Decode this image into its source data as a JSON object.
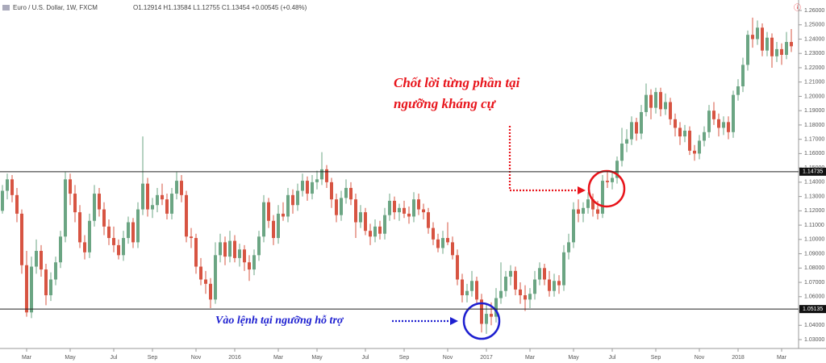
{
  "chart_data": {
    "type": "candlestick",
    "symbol": "Euro / U.S. Dollar, 1W, FXCM",
    "ohlc_legend": "O1.12914 H1.13584 L1.12755 C1.13454 +0.00545 (+0.48%)",
    "up_color": "#6ba583",
    "down_color": "#d75442",
    "ylim": [
      1.025,
      1.265
    ],
    "yticks": [
      {
        "value": 1.26,
        "label": "1.26000"
      },
      {
        "value": 1.25,
        "label": "1.25000"
      },
      {
        "value": 1.24,
        "label": "1.24000"
      },
      {
        "value": 1.23,
        "label": "1.23000"
      },
      {
        "value": 1.22,
        "label": "1.22000"
      },
      {
        "value": 1.21,
        "label": "1.21000"
      },
      {
        "value": 1.2,
        "label": "1.20000"
      },
      {
        "value": 1.19,
        "label": "1.19000"
      },
      {
        "value": 1.18,
        "label": "1.18000"
      },
      {
        "value": 1.17,
        "label": "1.17000"
      },
      {
        "value": 1.16,
        "label": "1.16000"
      },
      {
        "value": 1.15,
        "label": "1.15000"
      },
      {
        "value": 1.14,
        "label": "1.14000"
      },
      {
        "value": 1.13,
        "label": "1.13000"
      },
      {
        "value": 1.12,
        "label": "1.12000"
      },
      {
        "value": 1.11,
        "label": "1.11000"
      },
      {
        "value": 1.1,
        "label": "1.10000"
      },
      {
        "value": 1.09,
        "label": "1.09000"
      },
      {
        "value": 1.08,
        "label": "1.08000"
      },
      {
        "value": 1.07,
        "label": "1.07000"
      },
      {
        "value": 1.06,
        "label": "1.06000"
      },
      {
        "value": 1.05,
        "label": "1.05000"
      },
      {
        "value": 1.04,
        "label": "1.04000"
      },
      {
        "value": 1.03,
        "label": "1.03000"
      }
    ],
    "xticks": [
      {
        "value": 5,
        "label": "Mar"
      },
      {
        "value": 14,
        "label": "May"
      },
      {
        "value": 23,
        "label": "Jul"
      },
      {
        "value": 31,
        "label": "Sep"
      },
      {
        "value": 40,
        "label": "Nov"
      },
      {
        "value": 48,
        "label": "2016"
      },
      {
        "value": 57,
        "label": "Mar"
      },
      {
        "value": 65,
        "label": "May"
      },
      {
        "value": 75,
        "label": "Jul"
      },
      {
        "value": 83,
        "label": "Sep"
      },
      {
        "value": 92,
        "label": "Nov"
      },
      {
        "value": 100,
        "label": "2017"
      },
      {
        "value": 109,
        "label": "Mar"
      },
      {
        "value": 118,
        "label": "May"
      },
      {
        "value": 126,
        "label": "Jul"
      },
      {
        "value": 135,
        "label": "Sep"
      },
      {
        "value": 144,
        "label": "Nov"
      },
      {
        "value": 152,
        "label": "2018"
      },
      {
        "value": 161,
        "label": "Mar"
      }
    ],
    "levels": [
      1.14735,
      1.05135
    ],
    "annotations": {
      "resistance": [
        "Chốt lời từng phần tại",
        "ngưỡng kháng cự"
      ],
      "support": "Vào lệnh tại ngưỡng hỗ trợ"
    },
    "candles": [
      [
        1.12,
        1.138,
        1.118,
        1.134
      ],
      [
        1.134,
        1.146,
        1.128,
        1.142
      ],
      [
        1.142,
        1.145,
        1.126,
        1.131
      ],
      [
        1.131,
        1.136,
        1.112,
        1.118
      ],
      [
        1.118,
        1.121,
        1.076,
        1.082
      ],
      [
        1.082,
        1.092,
        1.046,
        1.049
      ],
      [
        1.049,
        1.088,
        1.045,
        1.081
      ],
      [
        1.081,
        1.1,
        1.076,
        1.092
      ],
      [
        1.092,
        1.096,
        1.074,
        1.079
      ],
      [
        1.079,
        1.083,
        1.054,
        1.061
      ],
      [
        1.061,
        1.077,
        1.057,
        1.072
      ],
      [
        1.072,
        1.088,
        1.068,
        1.084
      ],
      [
        1.084,
        1.106,
        1.08,
        1.102
      ],
      [
        1.102,
        1.147,
        1.098,
        1.142
      ],
      [
        1.142,
        1.146,
        1.124,
        1.132
      ],
      [
        1.132,
        1.138,
        1.112,
        1.119
      ],
      [
        1.119,
        1.124,
        1.094,
        1.098
      ],
      [
        1.098,
        1.103,
        1.086,
        1.091
      ],
      [
        1.091,
        1.118,
        1.087,
        1.113
      ],
      [
        1.113,
        1.138,
        1.109,
        1.132
      ],
      [
        1.132,
        1.136,
        1.116,
        1.121
      ],
      [
        1.121,
        1.126,
        1.103,
        1.109
      ],
      [
        1.109,
        1.114,
        1.096,
        1.101
      ],
      [
        1.101,
        1.109,
        1.091,
        1.096
      ],
      [
        1.096,
        1.1,
        1.086,
        1.089
      ],
      [
        1.089,
        1.106,
        1.085,
        1.101
      ],
      [
        1.101,
        1.116,
        1.097,
        1.112
      ],
      [
        1.112,
        1.115,
        1.094,
        1.098
      ],
      [
        1.098,
        1.126,
        1.094,
        1.121
      ],
      [
        1.121,
        1.172,
        1.117,
        1.139
      ],
      [
        1.139,
        1.143,
        1.116,
        1.121
      ],
      [
        1.121,
        1.129,
        1.115,
        1.124
      ],
      [
        1.124,
        1.136,
        1.119,
        1.131
      ],
      [
        1.131,
        1.139,
        1.124,
        1.128
      ],
      [
        1.128,
        1.132,
        1.114,
        1.118
      ],
      [
        1.118,
        1.136,
        1.114,
        1.132
      ],
      [
        1.132,
        1.147,
        1.128,
        1.141
      ],
      [
        1.141,
        1.145,
        1.126,
        1.131
      ],
      [
        1.131,
        1.134,
        1.098,
        1.102
      ],
      [
        1.102,
        1.108,
        1.094,
        1.101
      ],
      [
        1.101,
        1.104,
        1.076,
        1.081
      ],
      [
        1.081,
        1.087,
        1.068,
        1.072
      ],
      [
        1.072,
        1.078,
        1.062,
        1.069
      ],
      [
        1.069,
        1.073,
        1.052,
        1.058
      ],
      [
        1.058,
        1.098,
        1.055,
        1.089
      ],
      [
        1.089,
        1.104,
        1.084,
        1.098
      ],
      [
        1.098,
        1.102,
        1.082,
        1.088
      ],
      [
        1.088,
        1.106,
        1.084,
        1.099
      ],
      [
        1.099,
        1.103,
        1.084,
        1.087
      ],
      [
        1.087,
        1.097,
        1.081,
        1.093
      ],
      [
        1.093,
        1.096,
        1.078,
        1.084
      ],
      [
        1.084,
        1.089,
        1.071,
        1.079
      ],
      [
        1.079,
        1.093,
        1.075,
        1.089
      ],
      [
        1.089,
        1.106,
        1.085,
        1.102
      ],
      [
        1.102,
        1.131,
        1.098,
        1.126
      ],
      [
        1.126,
        1.129,
        1.108,
        1.113
      ],
      [
        1.113,
        1.117,
        1.096,
        1.101
      ],
      [
        1.101,
        1.124,
        1.097,
        1.118
      ],
      [
        1.118,
        1.126,
        1.113,
        1.116
      ],
      [
        1.116,
        1.136,
        1.112,
        1.131
      ],
      [
        1.131,
        1.135,
        1.118,
        1.124
      ],
      [
        1.124,
        1.139,
        1.12,
        1.134
      ],
      [
        1.134,
        1.146,
        1.13,
        1.141
      ],
      [
        1.141,
        1.144,
        1.127,
        1.132
      ],
      [
        1.132,
        1.145,
        1.128,
        1.14
      ],
      [
        1.14,
        1.148,
        1.135,
        1.142
      ],
      [
        1.142,
        1.161,
        1.138,
        1.149
      ],
      [
        1.149,
        1.152,
        1.136,
        1.14
      ],
      [
        1.14,
        1.143,
        1.122,
        1.128
      ],
      [
        1.128,
        1.132,
        1.112,
        1.117
      ],
      [
        1.117,
        1.134,
        1.113,
        1.129
      ],
      [
        1.129,
        1.142,
        1.125,
        1.136
      ],
      [
        1.136,
        1.14,
        1.124,
        1.128
      ],
      [
        1.128,
        1.132,
        1.101,
        1.112
      ],
      [
        1.112,
        1.124,
        1.108,
        1.119
      ],
      [
        1.119,
        1.122,
        1.103,
        1.106
      ],
      [
        1.106,
        1.111,
        1.096,
        1.102
      ],
      [
        1.102,
        1.114,
        1.098,
        1.109
      ],
      [
        1.109,
        1.113,
        1.1,
        1.104
      ],
      [
        1.104,
        1.122,
        1.1,
        1.117
      ],
      [
        1.117,
        1.132,
        1.113,
        1.127
      ],
      [
        1.127,
        1.13,
        1.114,
        1.119
      ],
      [
        1.119,
        1.125,
        1.113,
        1.122
      ],
      [
        1.122,
        1.127,
        1.115,
        1.118
      ],
      [
        1.118,
        1.123,
        1.111,
        1.116
      ],
      [
        1.116,
        1.133,
        1.112,
        1.128
      ],
      [
        1.128,
        1.132,
        1.117,
        1.121
      ],
      [
        1.121,
        1.125,
        1.114,
        1.119
      ],
      [
        1.119,
        1.122,
        1.104,
        1.108
      ],
      [
        1.108,
        1.112,
        1.096,
        1.1
      ],
      [
        1.1,
        1.104,
        1.091,
        1.094
      ],
      [
        1.094,
        1.106,
        1.09,
        1.101
      ],
      [
        1.101,
        1.112,
        1.096,
        1.098
      ],
      [
        1.098,
        1.102,
        1.086,
        1.089
      ],
      [
        1.089,
        1.093,
        1.068,
        1.072
      ],
      [
        1.072,
        1.076,
        1.056,
        1.061
      ],
      [
        1.061,
        1.069,
        1.056,
        1.064
      ],
      [
        1.064,
        1.078,
        1.06,
        1.071
      ],
      [
        1.071,
        1.074,
        1.055,
        1.058
      ],
      [
        1.058,
        1.062,
        1.035,
        1.041
      ],
      [
        1.041,
        1.055,
        1.034,
        1.048
      ],
      [
        1.048,
        1.056,
        1.04,
        1.046
      ],
      [
        1.046,
        1.066,
        1.042,
        1.059
      ],
      [
        1.059,
        1.084,
        1.055,
        1.064
      ],
      [
        1.064,
        1.078,
        1.06,
        1.074
      ],
      [
        1.074,
        1.082,
        1.068,
        1.078
      ],
      [
        1.078,
        1.081,
        1.061,
        1.065
      ],
      [
        1.065,
        1.07,
        1.055,
        1.061
      ],
      [
        1.061,
        1.068,
        1.05,
        1.058
      ],
      [
        1.058,
        1.066,
        1.052,
        1.062
      ],
      [
        1.062,
        1.078,
        1.058,
        1.072
      ],
      [
        1.072,
        1.084,
        1.068,
        1.08
      ],
      [
        1.08,
        1.083,
        1.068,
        1.072
      ],
      [
        1.072,
        1.078,
        1.06,
        1.064
      ],
      [
        1.064,
        1.076,
        1.06,
        1.071
      ],
      [
        1.071,
        1.075,
        1.062,
        1.068
      ],
      [
        1.068,
        1.096,
        1.064,
        1.091
      ],
      [
        1.091,
        1.104,
        1.086,
        1.098
      ],
      [
        1.098,
        1.126,
        1.094,
        1.121
      ],
      [
        1.121,
        1.128,
        1.112,
        1.118
      ],
      [
        1.118,
        1.126,
        1.112,
        1.122
      ],
      [
        1.122,
        1.133,
        1.118,
        1.128
      ],
      [
        1.128,
        1.132,
        1.116,
        1.121
      ],
      [
        1.121,
        1.127,
        1.114,
        1.118
      ],
      [
        1.118,
        1.145,
        1.115,
        1.141
      ],
      [
        1.141,
        1.148,
        1.136,
        1.14
      ],
      [
        1.14,
        1.147,
        1.135,
        1.143
      ],
      [
        1.143,
        1.158,
        1.139,
        1.155
      ],
      [
        1.155,
        1.178,
        1.151,
        1.167
      ],
      [
        1.167,
        1.177,
        1.161,
        1.17
      ],
      [
        1.17,
        1.186,
        1.166,
        1.182
      ],
      [
        1.182,
        1.185,
        1.169,
        1.174
      ],
      [
        1.174,
        1.194,
        1.17,
        1.189
      ],
      [
        1.189,
        1.209,
        1.186,
        1.201
      ],
      [
        1.201,
        1.205,
        1.184,
        1.192
      ],
      [
        1.192,
        1.206,
        1.188,
        1.203
      ],
      [
        1.203,
        1.206,
        1.186,
        1.191
      ],
      [
        1.191,
        1.202,
        1.187,
        1.196
      ],
      [
        1.196,
        1.199,
        1.18,
        1.184
      ],
      [
        1.184,
        1.188,
        1.172,
        1.178
      ],
      [
        1.178,
        1.182,
        1.166,
        1.172
      ],
      [
        1.172,
        1.18,
        1.168,
        1.176
      ],
      [
        1.176,
        1.179,
        1.159,
        1.162
      ],
      [
        1.162,
        1.166,
        1.155,
        1.16
      ],
      [
        1.16,
        1.173,
        1.156,
        1.169
      ],
      [
        1.169,
        1.179,
        1.165,
        1.175
      ],
      [
        1.175,
        1.194,
        1.171,
        1.19
      ],
      [
        1.19,
        1.196,
        1.18,
        1.184
      ],
      [
        1.184,
        1.188,
        1.172,
        1.178
      ],
      [
        1.178,
        1.186,
        1.173,
        1.182
      ],
      [
        1.182,
        1.186,
        1.17,
        1.175
      ],
      [
        1.175,
        1.204,
        1.171,
        1.201
      ],
      [
        1.201,
        1.212,
        1.197,
        1.207
      ],
      [
        1.207,
        1.227,
        1.203,
        1.222
      ],
      [
        1.222,
        1.246,
        1.218,
        1.243
      ],
      [
        1.243,
        1.255,
        1.234,
        1.24
      ],
      [
        1.24,
        1.253,
        1.236,
        1.248
      ],
      [
        1.248,
        1.251,
        1.228,
        1.232
      ],
      [
        1.232,
        1.245,
        1.228,
        1.241
      ],
      [
        1.241,
        1.244,
        1.22,
        1.228
      ],
      [
        1.228,
        1.238,
        1.224,
        1.233
      ],
      [
        1.233,
        1.237,
        1.222,
        1.229
      ],
      [
        1.229,
        1.245,
        1.226,
        1.238
      ],
      [
        1.238,
        1.247,
        1.231,
        1.235
      ]
    ]
  }
}
